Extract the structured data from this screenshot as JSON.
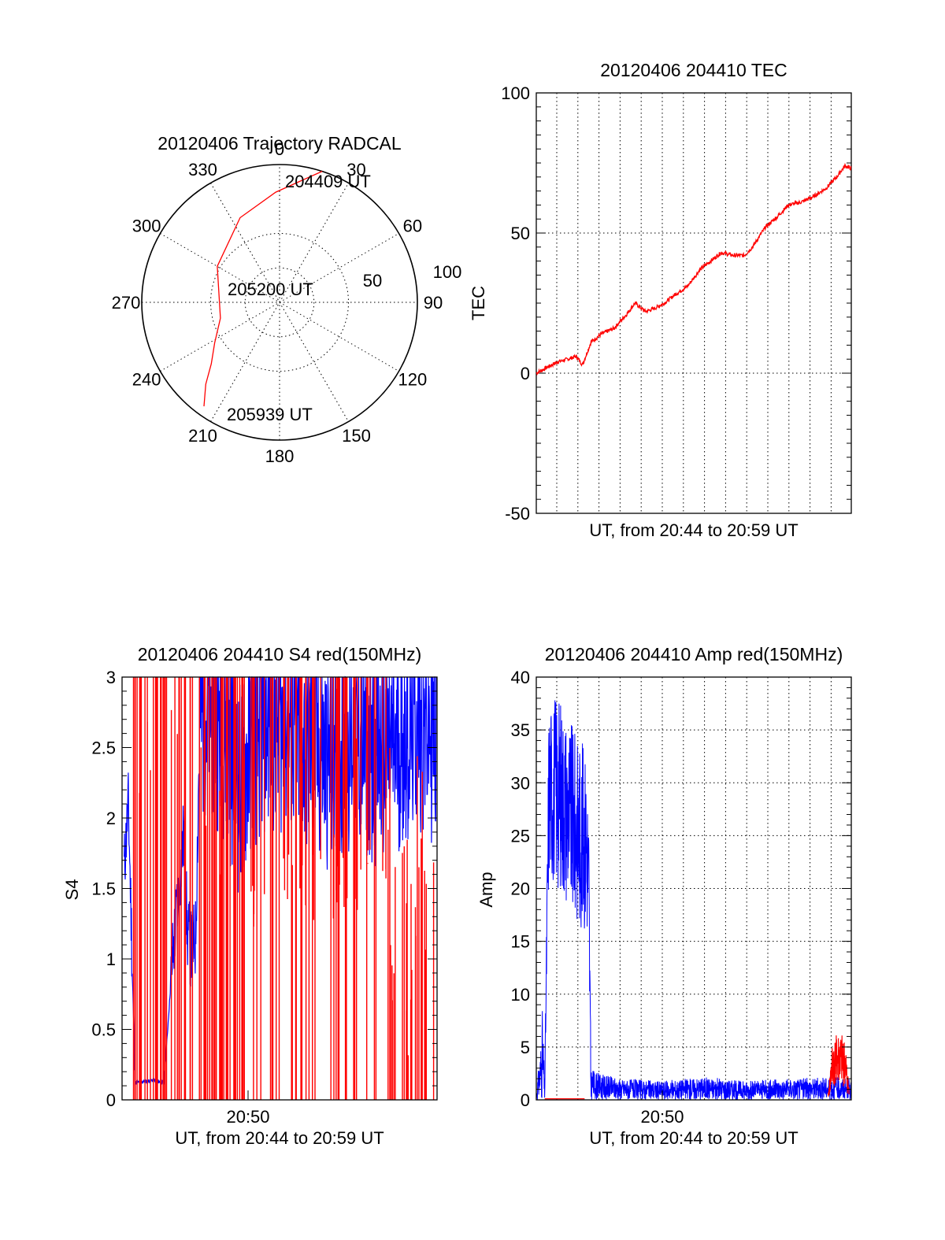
{
  "colors": {
    "red": "#ff0000",
    "blue": "#0000ff"
  },
  "charts": {
    "polar": {
      "title": "20120406 Trajectory RADCAL",
      "azimuth_labels": [
        "0",
        "30",
        "60",
        "90",
        "120",
        "150",
        "180",
        "210",
        "240",
        "270",
        "300",
        "330"
      ],
      "ring_labels": [
        "50",
        "100"
      ],
      "annotations": [
        "204409 UT",
        "205200 UT",
        "205939 UT"
      ]
    },
    "tec": {
      "title": "20120406 204410 TEC",
      "ylabel": "TEC",
      "xlabel": "UT, from 20:44 to 20:59 UT",
      "y_ticks": [
        "100",
        "50",
        "0",
        "-50"
      ]
    },
    "s4": {
      "title": "20120406 204410 S4 red(150MHz)",
      "ylabel": "S4",
      "xlabel": "UT, from 20:44 to 20:59 UT",
      "x_tick": "20:50",
      "y_ticks": [
        "3",
        "2.5",
        "2",
        "1.5",
        "1",
        "0.5",
        "0"
      ]
    },
    "amp": {
      "title": "20120406 204410 Amp red(150MHz)",
      "ylabel": "Amp",
      "xlabel": "UT, from 20:44 to 20:59 UT",
      "x_tick": "20:50",
      "y_ticks": [
        "40",
        "35",
        "30",
        "25",
        "20",
        "15",
        "10",
        "5",
        "0"
      ]
    }
  },
  "chart_data": [
    {
      "type": "scatter",
      "title": "20120406 Trajectory RADCAL",
      "subtype": "polar-trajectory",
      "azimuth_deg": [
        18,
        358,
        335,
        300,
        255,
        238,
        228,
        222,
        216
      ],
      "zenith_deg": [
        90,
        72,
        61,
        47,
        40,
        50,
        60,
        72,
        84
      ],
      "start_label": "204409 UT",
      "mid_label": "205200 UT",
      "end_label": "205939 UT",
      "rlim": [
        0,
        100
      ],
      "grid": true
    },
    {
      "type": "line",
      "title": "20120406 204410 TEC",
      "xlabel": "UT, from 20:44 to 20:59 UT",
      "ylabel": "TEC",
      "xlim": [
        0,
        15
      ],
      "ylim": [
        -50,
        100
      ],
      "grid": true,
      "series": [
        {
          "color": "#ff0000",
          "x": [
            0,
            0.5,
            1,
            1.5,
            1.9,
            2.2,
            2.6,
            3.1,
            3.7,
            4.3,
            4.7,
            5.2,
            5.6,
            6.1,
            6.6,
            7.2,
            7.8,
            8.3,
            8.8,
            9.4,
            9.9,
            10.3,
            10.9,
            11.5,
            12,
            12.6,
            13.2,
            13.8,
            14.3,
            14.7,
            15
          ],
          "y": [
            0,
            2,
            4,
            5,
            6,
            3,
            11,
            14,
            16,
            21,
            25,
            22,
            23,
            25,
            28,
            31,
            37,
            40,
            43,
            42,
            42,
            45,
            52,
            56,
            60,
            61,
            63,
            66,
            70,
            74,
            73
          ]
        }
      ]
    },
    {
      "type": "line",
      "title": "20120406 204410 S4 red(150MHz)",
      "xlabel": "UT, from 20:44 to 20:59 UT",
      "ylabel": "S4",
      "xlim": [
        0,
        15
      ],
      "ylim": [
        0,
        3
      ],
      "x_ticks": [
        {
          "x": 6,
          "label": "20:50"
        }
      ],
      "grid": false,
      "series": [
        {
          "color": "#0000ff",
          "x": [
            0.1,
            0.3,
            0.45,
            0.6,
            1.0,
            1.5,
            2.0,
            2.4,
            2.7,
            2.95,
            3.1,
            3.3,
            3.5,
            3.7,
            4.2,
            4.9,
            5.6,
            6.2,
            7.0,
            8.0,
            9.0,
            10.0,
            11.0,
            12.0,
            13.0,
            13.6,
            14.2,
            14.8
          ],
          "y": [
            1.65,
            2.1,
            1.2,
            0.12,
            0.13,
            0.14,
            0.12,
            1.0,
            1.5,
            1.9,
            1.2,
            1.05,
            1.15,
            2.7,
            2.8,
            2.6,
            2.2,
            2.55,
            2.7,
            2.65,
            2.5,
            2.4,
            2.6,
            2.45,
            2.5,
            2.6,
            2.7,
            2.6
          ]
        },
        {
          "color": "#ff0000",
          "x": [
            0.1,
            0.5,
            1.0,
            2.0,
            2.8,
            3.5,
            4.0,
            5.0,
            6.0,
            7.0,
            8.0,
            9.0,
            10.0,
            11.0,
            12.0,
            13.0,
            13.5,
            14.0,
            14.3,
            14.6,
            15.0
          ],
          "y": [
            0.0,
            0.0,
            3.0,
            3.0,
            3.0,
            3.0,
            3.0,
            3.0,
            3.0,
            3.0,
            3.0,
            3.0,
            3.0,
            3.0,
            3.0,
            1.5,
            1.0,
            0.3,
            0.2,
            0.5,
            1.3
          ]
        }
      ]
    },
    {
      "type": "line",
      "title": "20120406 204410 Amp red(150MHz)",
      "xlabel": "UT, from 20:44 to 20:59 UT",
      "ylabel": "Amp",
      "xlim": [
        0,
        15
      ],
      "ylim": [
        0,
        40
      ],
      "x_ticks": [
        {
          "x": 6,
          "label": "20:50"
        }
      ],
      "grid": true,
      "series": [
        {
          "color": "#0000ff",
          "x": [
            0,
            0.2,
            0.3,
            0.4,
            0.6,
            1.0,
            1.4,
            1.8,
            2.2,
            2.4,
            2.5,
            2.6,
            3.0,
            4.0,
            6.0,
            8.0,
            10.0,
            12.0,
            14.0,
            15.0
          ],
          "y": [
            0.3,
            3,
            9,
            0.5,
            34,
            36,
            31,
            29,
            27,
            25,
            18,
            1.5,
            0.8,
            0.9,
            0.8,
            1.0,
            0.9,
            1.0,
            1.1,
            1.2
          ],
          "envelope_low": [
            0,
            0,
            0,
            0,
            21,
            20,
            19,
            17,
            16,
            16,
            12,
            0,
            0,
            0,
            0,
            0,
            0,
            0,
            0,
            0
          ],
          "envelope_high": [
            0.8,
            5,
            9,
            1,
            38,
            39,
            37,
            35,
            34,
            33,
            28,
            3,
            2.5,
            2,
            1.8,
            2.2,
            1.8,
            2.0,
            2.2,
            2.0
          ]
        },
        {
          "color": "#ff0000",
          "x": [
            0.4,
            1.0,
            2.0,
            2.3,
            13.9,
            14.1,
            14.4,
            14.7,
            14.9
          ],
          "y": [
            0.1,
            0.1,
            0.1,
            0.1,
            0.5,
            5.5,
            6.5,
            5.8,
            1.0
          ]
        }
      ]
    }
  ]
}
